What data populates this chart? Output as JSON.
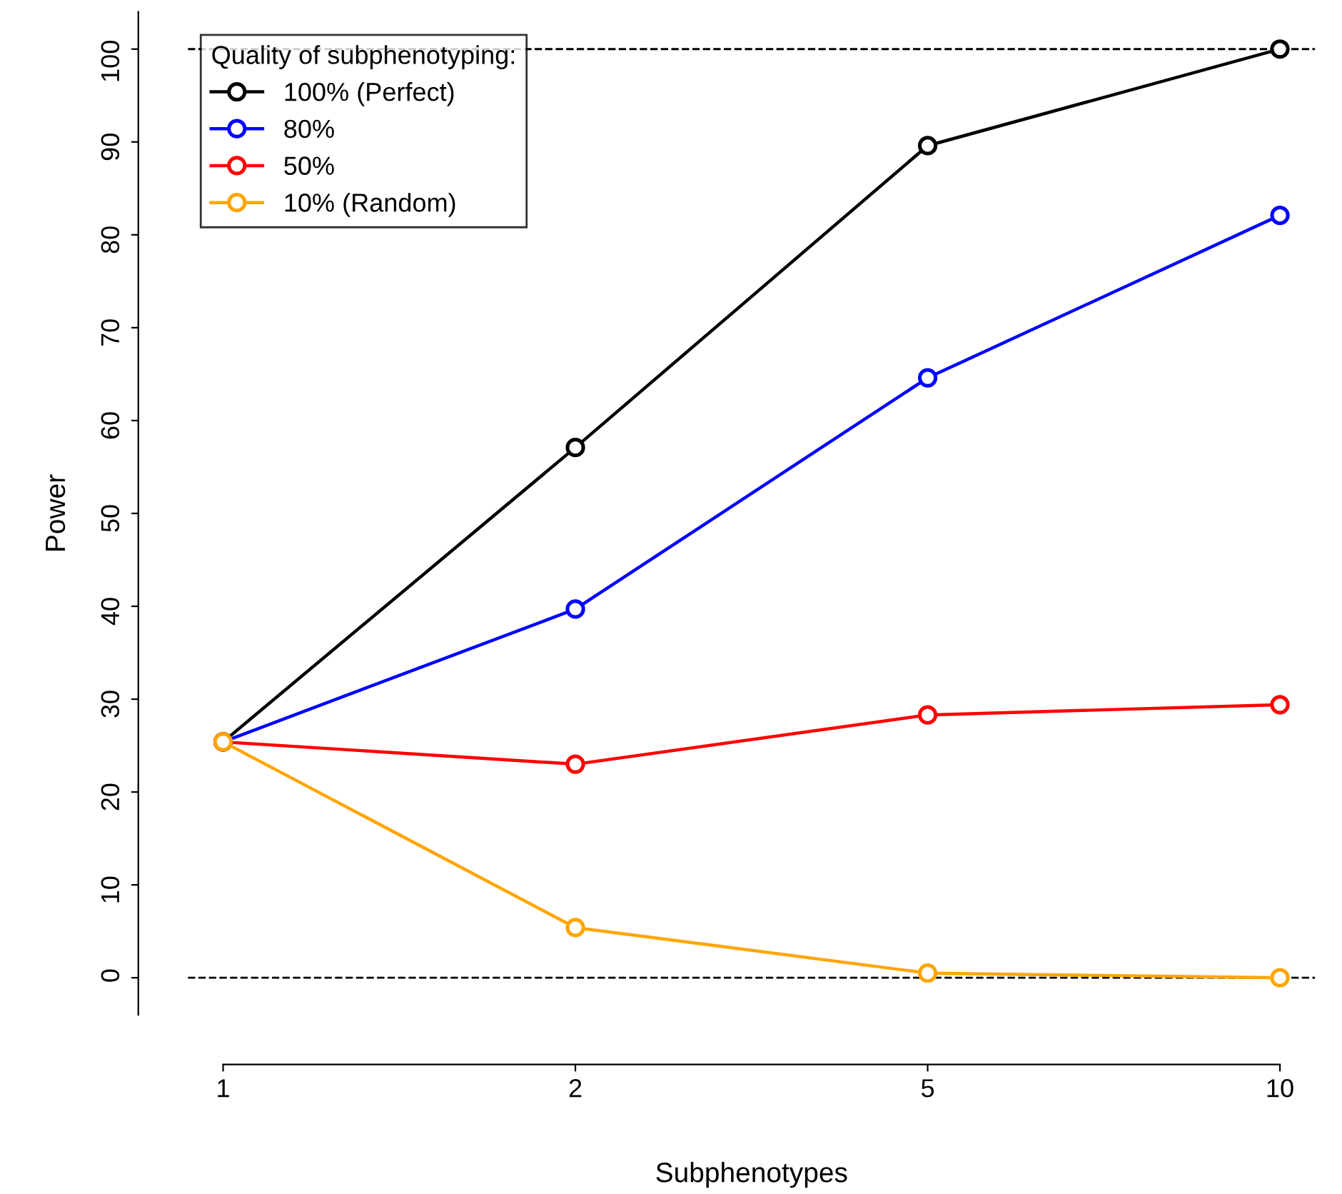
{
  "chart_data": {
    "type": "line",
    "xlabel": "Subphenotypes",
    "ylabel": "Power",
    "legend_title": "Quality of subphenotyping:",
    "categories": [
      "1",
      "2",
      "5",
      "10"
    ],
    "series": [
      {
        "name": "100% (Perfect)",
        "color": "#000000",
        "values": [
          25.4,
          57.1,
          89.6,
          100
        ]
      },
      {
        "name": "80%",
        "color": "#0000ff",
        "values": [
          25.4,
          39.7,
          64.6,
          82.1
        ]
      },
      {
        "name": "50%",
        "color": "#ff0000",
        "values": [
          25.4,
          23.0,
          28.3,
          29.4
        ]
      },
      {
        "name": "10% (Random)",
        "color": "#ffa500",
        "values": [
          25.4,
          5.4,
          0.5,
          0
        ]
      }
    ],
    "ylim": [
      -4,
      104
    ],
    "yticks": [
      0,
      10,
      20,
      30,
      40,
      50,
      60,
      70,
      80,
      90,
      100
    ],
    "ref_lines": [
      {
        "axis": "y",
        "value": 0,
        "color": "#000000",
        "line_style": "dashed"
      },
      {
        "axis": "y",
        "value": 100,
        "color": "#000000",
        "line_style": "dashed"
      }
    ],
    "marker": "circle",
    "line_style": "solid",
    "legend": "top left",
    "grid": false
  }
}
